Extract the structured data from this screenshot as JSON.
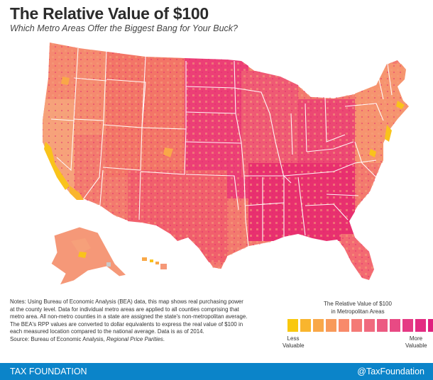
{
  "title": "The Relative Value of $100",
  "subtitle": "Which Metro Areas Offer the Biggest Bang for Your Buck?",
  "notes": {
    "body": "Notes: Using Bureau of Economic Analysis (BEA) data, this map shows real purchasing power at the county level. Data for individual metro areas are applied to all counties comprising that metro area. All non-metro counties in a state are assigned the state's non-metropolitan average. The BEA's RPP values are converted to dollar equivalents to express the real value of $100 in each measured location compared to the national average. Data is as of 2014.",
    "source_prefix": "Source: Bureau of Economic Analysis, ",
    "source_title": "Regional Price Parities",
    "source_suffix": "."
  },
  "legend": {
    "title_line1": "The Relative Value of $100",
    "title_line2": "in Metropolitan Areas",
    "less_line1": "Less",
    "less_line2": "Valuable",
    "more_line1": "More",
    "more_line2": "Valuable",
    "colors": [
      "#f9c80e",
      "#f9b52e",
      "#f9a848",
      "#f89a5a",
      "#f88a6a",
      "#f47a76",
      "#f06a7e",
      "#ec5a82",
      "#e84a84",
      "#e53a84",
      "#e32c82",
      "#e01f7e"
    ]
  },
  "footer": {
    "brand": "TAX FOUNDATION",
    "handle": "@TaxFoundation",
    "bar_color": "#0b84c9"
  }
}
